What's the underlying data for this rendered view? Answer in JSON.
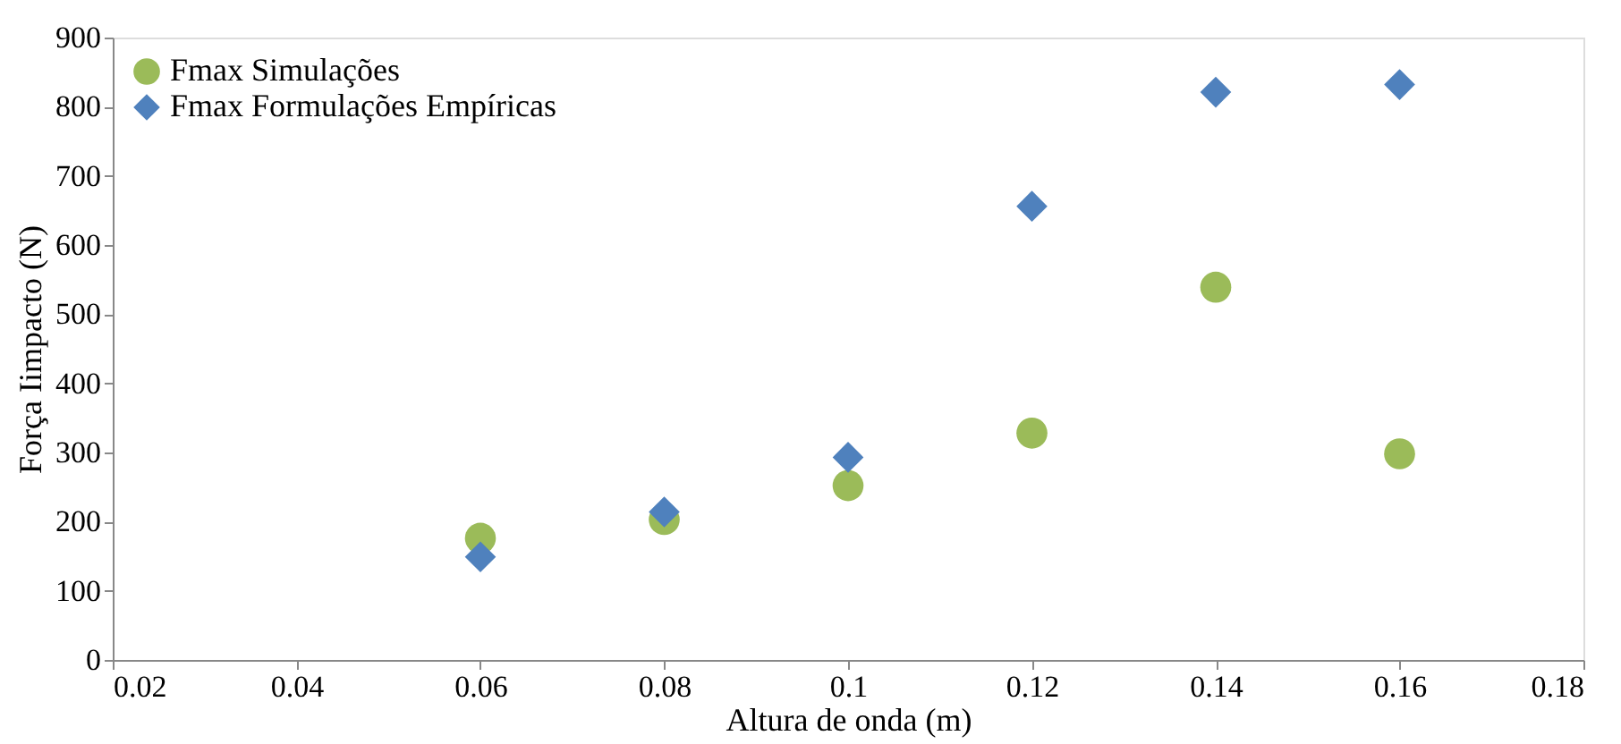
{
  "chart_data": {
    "type": "scatter",
    "xlabel": "Altura de onda (m)",
    "ylabel": "Força Iimpacto (N)",
    "x": [
      0.06,
      0.08,
      0.1,
      0.12,
      0.14,
      0.16
    ],
    "series": [
      {
        "name": "Fmax Simulações",
        "color": "#9bbb59",
        "marker": "circle",
        "values": [
          176,
          203,
          252,
          328,
          539,
          298
        ]
      },
      {
        "name": "Fmax Formulações Empíricas",
        "color": "#4f81bd",
        "marker": "diamond",
        "values": [
          149,
          214,
          293,
          656,
          821,
          832
        ]
      }
    ],
    "xlim": [
      0.02,
      0.18
    ],
    "xticks": [
      0.02,
      0.04,
      0.06,
      0.08,
      0.1,
      0.12,
      0.14,
      0.16,
      0.18
    ],
    "ylim": [
      0,
      900
    ],
    "yticks": [
      0,
      100,
      200,
      300,
      400,
      500,
      600,
      700,
      800,
      900
    ],
    "grid": false,
    "legend": "top left"
  }
}
